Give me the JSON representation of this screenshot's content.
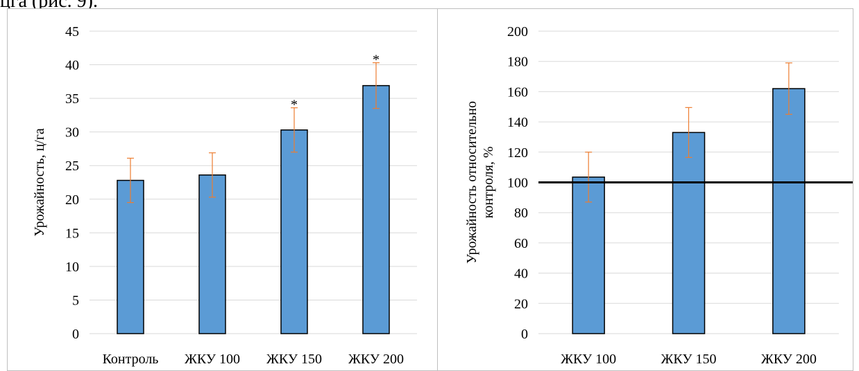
{
  "header_fragment": "цга (рис. 9).",
  "chart_data": [
    {
      "type": "bar",
      "categories": [
        "Контроль",
        "ЖКУ 100",
        "ЖКУ 150",
        "ЖКУ 200"
      ],
      "values": [
        22.8,
        23.6,
        30.3,
        36.9
      ],
      "error": [
        3.3,
        3.3,
        3.3,
        3.4
      ],
      "annotations": [
        "",
        "",
        "*",
        "*"
      ],
      "ylabel": "Урожайность, ц/га",
      "ylim": [
        0,
        45
      ],
      "yticks": [
        0,
        5,
        10,
        15,
        20,
        25,
        30,
        35,
        40,
        45
      ],
      "grid": true,
      "bar_color": "#5b9bd5",
      "error_color": "#ed7d31"
    },
    {
      "type": "bar",
      "categories": [
        "ЖКУ 100",
        "ЖКУ 150",
        "ЖКУ 200"
      ],
      "values": [
        103.5,
        133,
        162
      ],
      "error": [
        16.5,
        16.5,
        17
      ],
      "ylabel": [
        "Урожайность относительно",
        "контроля, %"
      ],
      "ylim": [
        0,
        200
      ],
      "yticks": [
        0,
        20,
        40,
        60,
        80,
        100,
        120,
        140,
        160,
        180,
        200
      ],
      "reference_line": 100,
      "grid": true,
      "bar_color": "#5b9bd5",
      "error_color": "#ed7d31"
    }
  ]
}
